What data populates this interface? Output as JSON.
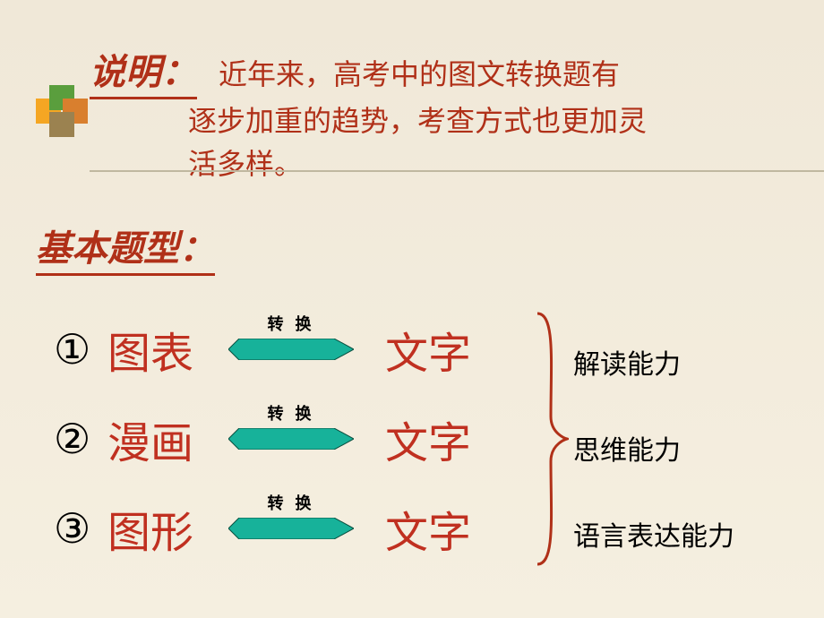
{
  "deco": {
    "colors": [
      "#f5a623",
      "#5a9e3d",
      "#d97f2e",
      "#9b8250"
    ],
    "positions": [
      [
        0,
        15
      ],
      [
        15,
        0
      ],
      [
        30,
        15
      ],
      [
        15,
        30
      ]
    ]
  },
  "header": {
    "title": "说明：",
    "title_color": "#b03018",
    "text_line1": "近年来，高考中的图文转换题有",
    "text_line2": "逐步加重的趋势，考查方式也更加灵",
    "text_line3": "活多样。",
    "text_color": "#b03018"
  },
  "section": {
    "title": "基本题型：",
    "title_color": "#b03018"
  },
  "rows": [
    {
      "num": "①",
      "left": "图表",
      "right": "文字"
    },
    {
      "num": "②",
      "left": "漫画",
      "right": "文字"
    },
    {
      "num": "③",
      "left": "图形",
      "right": "文字"
    }
  ],
  "row_style": {
    "left_color": "#c03020",
    "right_color": "#c03020",
    "num_color": "#000000"
  },
  "arrow": {
    "label": "转 换",
    "label_color": "#000000",
    "fill": "#17b29a",
    "stroke": "#0a5040",
    "width": 140,
    "height": 24
  },
  "brace": {
    "color": "#b03018",
    "stroke_width": 3
  },
  "abilities": [
    "解读能力",
    "思维能力",
    "语言表达能力"
  ],
  "ability_color": "#000000"
}
